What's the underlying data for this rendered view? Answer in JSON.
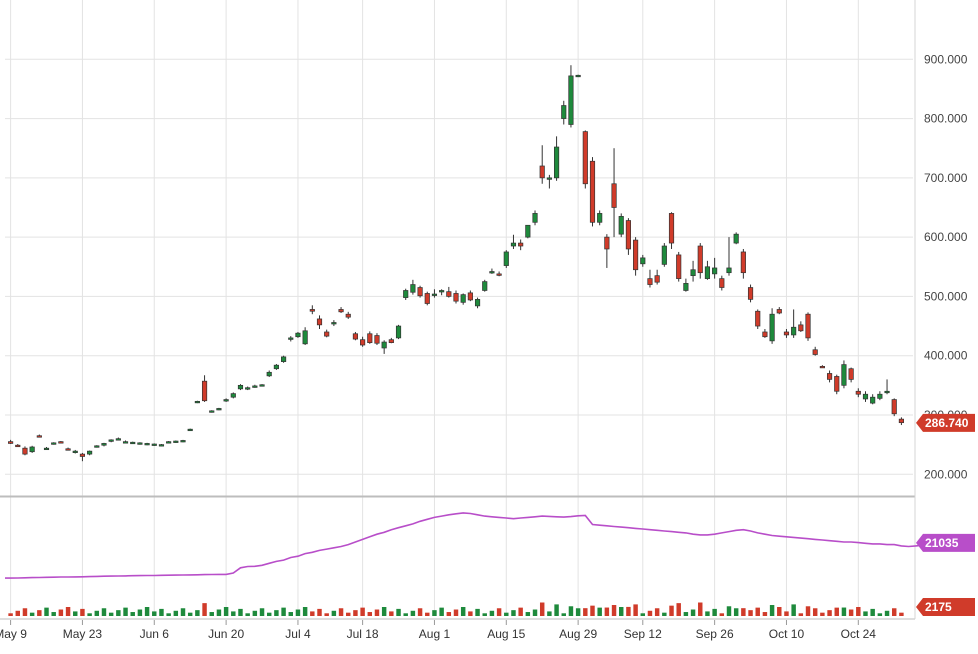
{
  "chart_data": [
    {
      "type": "candlestick",
      "title": "",
      "x_labels": [
        "May 9",
        "May 23",
        "Jun 6",
        "Jun 20",
        "Jul 4",
        "Jul 18",
        "Aug 1",
        "Aug 15",
        "Aug 29",
        "Sep 12",
        "Sep 26",
        "Oct 10",
        "Oct 24"
      ],
      "y_ticks": [
        "200.000",
        "300.000",
        "400.000",
        "500.000",
        "600.000",
        "700.000",
        "800.000",
        "900.000"
      ],
      "ylim": [
        165,
        1000
      ],
      "grid": true,
      "up_color": "#1e8a3c",
      "down_color": "#d03b2a",
      "last_price_label": "286.740",
      "last_price": 286.74,
      "candles": [
        {
          "date": "May 9",
          "o": 255,
          "h": 258,
          "l": 251,
          "c": 252
        },
        {
          "date": "May 10",
          "o": 249,
          "h": 251,
          "l": 246,
          "c": 248
        },
        {
          "date": "May 11",
          "o": 244,
          "h": 247,
          "l": 232,
          "c": 234
        },
        {
          "date": "May 12",
          "o": 238,
          "h": 248,
          "l": 236,
          "c": 246
        },
        {
          "date": "May 13",
          "o": 265,
          "h": 267,
          "l": 263,
          "c": 264
        },
        {
          "date": "May 16",
          "o": 243,
          "h": 246,
          "l": 241,
          "c": 244
        },
        {
          "date": "May 17",
          "o": 252,
          "h": 254,
          "l": 250,
          "c": 253
        },
        {
          "date": "May 18",
          "o": 255,
          "h": 256,
          "l": 253,
          "c": 254
        },
        {
          "date": "May 19",
          "o": 243,
          "h": 245,
          "l": 241,
          "c": 242
        },
        {
          "date": "May 20",
          "o": 238,
          "h": 241,
          "l": 235,
          "c": 239
        },
        {
          "date": "May 23",
          "o": 234,
          "h": 236,
          "l": 222,
          "c": 230
        },
        {
          "date": "May 24",
          "o": 234,
          "h": 240,
          "l": 232,
          "c": 239
        },
        {
          "date": "May 25",
          "o": 247,
          "h": 249,
          "l": 245,
          "c": 248
        },
        {
          "date": "May 26",
          "o": 249,
          "h": 253,
          "l": 247,
          "c": 252
        },
        {
          "date": "May 27",
          "o": 256,
          "h": 259,
          "l": 254,
          "c": 258
        },
        {
          "date": "May 30",
          "o": 259,
          "h": 262,
          "l": 257,
          "c": 260
        },
        {
          "date": "May 31",
          "o": 254,
          "h": 257,
          "l": 252,
          "c": 255
        },
        {
          "date": "Jun 1",
          "o": 253,
          "h": 255,
          "l": 251,
          "c": 254
        },
        {
          "date": "Jun 2",
          "o": 252,
          "h": 254,
          "l": 250,
          "c": 253
        },
        {
          "date": "Jun 3",
          "o": 251,
          "h": 253,
          "l": 249,
          "c": 252
        },
        {
          "date": "Jun 6",
          "o": 250,
          "h": 252,
          "l": 248,
          "c": 251
        },
        {
          "date": "Jun 7",
          "o": 249,
          "h": 251,
          "l": 247,
          "c": 250
        },
        {
          "date": "Jun 8",
          "o": 254,
          "h": 256,
          "l": 252,
          "c": 255
        },
        {
          "date": "Jun 9",
          "o": 255,
          "h": 257,
          "l": 253,
          "c": 256
        },
        {
          "date": "Jun 10",
          "o": 256,
          "h": 258,
          "l": 254,
          "c": 257
        },
        {
          "date": "Jun 13",
          "o": 275,
          "h": 277,
          "l": 273,
          "c": 276
        },
        {
          "date": "Jun 14",
          "o": 322,
          "h": 324,
          "l": 320,
          "c": 323
        },
        {
          "date": "Jun 15",
          "o": 357,
          "h": 367,
          "l": 322,
          "c": 324
        },
        {
          "date": "Jun 16",
          "o": 306,
          "h": 308,
          "l": 304,
          "c": 307
        },
        {
          "date": "Jun 17",
          "o": 310,
          "h": 312,
          "l": 308,
          "c": 311
        },
        {
          "date": "Jun 20",
          "o": 324,
          "h": 328,
          "l": 322,
          "c": 326
        },
        {
          "date": "Jun 21",
          "o": 330,
          "h": 338,
          "l": 328,
          "c": 336
        },
        {
          "date": "Jun 22",
          "o": 344,
          "h": 352,
          "l": 342,
          "c": 350
        },
        {
          "date": "Jun 23",
          "o": 345,
          "h": 348,
          "l": 342,
          "c": 346
        },
        {
          "date": "Jun 24",
          "o": 348,
          "h": 351,
          "l": 346,
          "c": 349
        },
        {
          "date": "Jun 27",
          "o": 350,
          "h": 352,
          "l": 348,
          "c": 351
        },
        {
          "date": "Jun 28",
          "o": 366,
          "h": 375,
          "l": 364,
          "c": 372
        },
        {
          "date": "Jun 29",
          "o": 378,
          "h": 386,
          "l": 376,
          "c": 384
        },
        {
          "date": "Jun 30",
          "o": 390,
          "h": 400,
          "l": 388,
          "c": 398
        },
        {
          "date": "Jul 1",
          "o": 428,
          "h": 433,
          "l": 424,
          "c": 430
        },
        {
          "date": "Jul 5",
          "o": 432,
          "h": 440,
          "l": 430,
          "c": 438
        },
        {
          "date": "Jul 6",
          "o": 420,
          "h": 448,
          "l": 418,
          "c": 442
        },
        {
          "date": "Jul 7",
          "o": 478,
          "h": 485,
          "l": 470,
          "c": 475
        },
        {
          "date": "Jul 8",
          "o": 462,
          "h": 468,
          "l": 445,
          "c": 452
        },
        {
          "date": "Jul 11",
          "o": 440,
          "h": 444,
          "l": 431,
          "c": 433
        },
        {
          "date": "Jul 12",
          "o": 455,
          "h": 460,
          "l": 450,
          "c": 456
        },
        {
          "date": "Jul 13",
          "o": 478,
          "h": 482,
          "l": 472,
          "c": 474
        },
        {
          "date": "Jul 14",
          "o": 470,
          "h": 474,
          "l": 462,
          "c": 465
        },
        {
          "date": "Jul 15",
          "o": 437,
          "h": 440,
          "l": 426,
          "c": 428
        },
        {
          "date": "Jul 18",
          "o": 427,
          "h": 432,
          "l": 415,
          "c": 418
        },
        {
          "date": "Jul 19",
          "o": 437,
          "h": 441,
          "l": 420,
          "c": 422
        },
        {
          "date": "Jul 20",
          "o": 434,
          "h": 438,
          "l": 418,
          "c": 421
        },
        {
          "date": "Jul 21",
          "o": 413,
          "h": 426,
          "l": 403,
          "c": 423
        },
        {
          "date": "Jul 22",
          "o": 427,
          "h": 430,
          "l": 421,
          "c": 422
        },
        {
          "date": "Jul 25",
          "o": 430,
          "h": 452,
          "l": 428,
          "c": 450
        },
        {
          "date": "Jul 26",
          "o": 498,
          "h": 513,
          "l": 494,
          "c": 510
        },
        {
          "date": "Jul 27",
          "o": 507,
          "h": 528,
          "l": 503,
          "c": 520
        },
        {
          "date": "Jul 28",
          "o": 515,
          "h": 518,
          "l": 498,
          "c": 501
        },
        {
          "date": "Jul 29",
          "o": 505,
          "h": 508,
          "l": 485,
          "c": 488
        },
        {
          "date": "Aug 1",
          "o": 502,
          "h": 512,
          "l": 498,
          "c": 504
        },
        {
          "date": "Aug 2",
          "o": 508,
          "h": 512,
          "l": 502,
          "c": 510
        },
        {
          "date": "Aug 3",
          "o": 508,
          "h": 516,
          "l": 498,
          "c": 500
        },
        {
          "date": "Aug 4",
          "o": 505,
          "h": 510,
          "l": 488,
          "c": 492
        },
        {
          "date": "Aug 5",
          "o": 490,
          "h": 505,
          "l": 486,
          "c": 503
        },
        {
          "date": "Aug 8",
          "o": 506,
          "h": 510,
          "l": 492,
          "c": 494
        },
        {
          "date": "Aug 9",
          "o": 484,
          "h": 498,
          "l": 480,
          "c": 495
        },
        {
          "date": "Aug 10",
          "o": 510,
          "h": 528,
          "l": 508,
          "c": 525
        },
        {
          "date": "Aug 11",
          "o": 540,
          "h": 547,
          "l": 538,
          "c": 542
        },
        {
          "date": "Aug 12",
          "o": 538,
          "h": 542,
          "l": 534,
          "c": 536
        },
        {
          "date": "Aug 15",
          "o": 552,
          "h": 578,
          "l": 548,
          "c": 575
        },
        {
          "date": "Aug 16",
          "o": 585,
          "h": 604,
          "l": 580,
          "c": 590
        },
        {
          "date": "Aug 17",
          "o": 590,
          "h": 596,
          "l": 578,
          "c": 585
        },
        {
          "date": "Aug 18",
          "o": 600,
          "h": 620,
          "l": 598,
          "c": 620
        },
        {
          "date": "Aug 19",
          "o": 625,
          "h": 645,
          "l": 620,
          "c": 640
        },
        {
          "date": "Aug 22",
          "o": 720,
          "h": 755,
          "l": 690,
          "c": 700
        },
        {
          "date": "Aug 23",
          "o": 700,
          "h": 705,
          "l": 682,
          "c": 700
        },
        {
          "date": "Aug 24",
          "o": 700,
          "h": 770,
          "l": 695,
          "c": 752
        },
        {
          "date": "Aug 25",
          "o": 800,
          "h": 830,
          "l": 790,
          "c": 822
        },
        {
          "date": "Aug 26",
          "o": 790,
          "h": 890,
          "l": 785,
          "c": 872
        },
        {
          "date": "Aug 29",
          "o": 872,
          "h": 874,
          "l": 870,
          "c": 873
        },
        {
          "date": "Aug 30",
          "o": 778,
          "h": 780,
          "l": 682,
          "c": 690
        },
        {
          "date": "Aug 31",
          "o": 728,
          "h": 735,
          "l": 618,
          "c": 625
        },
        {
          "date": "Sep 1",
          "o": 625,
          "h": 645,
          "l": 620,
          "c": 640
        },
        {
          "date": "Sep 2",
          "o": 600,
          "h": 605,
          "l": 548,
          "c": 580
        },
        {
          "date": "Sep 6",
          "o": 690,
          "h": 750,
          "l": 600,
          "c": 650
        },
        {
          "date": "Sep 7",
          "o": 605,
          "h": 640,
          "l": 600,
          "c": 635
        },
        {
          "date": "Sep 8",
          "o": 628,
          "h": 632,
          "l": 570,
          "c": 580
        },
        {
          "date": "Sep 9",
          "o": 595,
          "h": 600,
          "l": 535,
          "c": 545
        },
        {
          "date": "Sep 12",
          "o": 555,
          "h": 570,
          "l": 550,
          "c": 565
        },
        {
          "date": "Sep 13",
          "o": 530,
          "h": 545,
          "l": 515,
          "c": 520
        },
        {
          "date": "Sep 14",
          "o": 535,
          "h": 545,
          "l": 520,
          "c": 524
        },
        {
          "date": "Sep 15",
          "o": 554,
          "h": 590,
          "l": 550,
          "c": 585
        },
        {
          "date": "Sep 16",
          "o": 640,
          "h": 642,
          "l": 580,
          "c": 590
        },
        {
          "date": "Sep 19",
          "o": 570,
          "h": 575,
          "l": 525,
          "c": 530
        },
        {
          "date": "Sep 20",
          "o": 510,
          "h": 530,
          "l": 508,
          "c": 522
        },
        {
          "date": "Sep 21",
          "o": 535,
          "h": 560,
          "l": 525,
          "c": 545
        },
        {
          "date": "Sep 22",
          "o": 585,
          "h": 590,
          "l": 530,
          "c": 540
        },
        {
          "date": "Sep 23",
          "o": 530,
          "h": 560,
          "l": 528,
          "c": 550
        },
        {
          "date": "Sep 26",
          "o": 538,
          "h": 565,
          "l": 530,
          "c": 548
        },
        {
          "date": "Sep 27",
          "o": 530,
          "h": 535,
          "l": 510,
          "c": 515
        },
        {
          "date": "Sep 28",
          "o": 540,
          "h": 600,
          "l": 535,
          "c": 548
        },
        {
          "date": "Sep 29",
          "o": 590,
          "h": 608,
          "l": 588,
          "c": 605
        },
        {
          "date": "Sep 30",
          "o": 575,
          "h": 580,
          "l": 530,
          "c": 540
        },
        {
          "date": "Oct 3",
          "o": 515,
          "h": 520,
          "l": 490,
          "c": 495
        },
        {
          "date": "Oct 4",
          "o": 475,
          "h": 478,
          "l": 445,
          "c": 450
        },
        {
          "date": "Oct 5",
          "o": 440,
          "h": 445,
          "l": 430,
          "c": 432
        },
        {
          "date": "Oct 6",
          "o": 425,
          "h": 480,
          "l": 420,
          "c": 470
        },
        {
          "date": "Oct 7",
          "o": 478,
          "h": 482,
          "l": 470,
          "c": 472
        },
        {
          "date": "Oct 10",
          "o": 440,
          "h": 445,
          "l": 430,
          "c": 435
        },
        {
          "date": "Oct 11",
          "o": 435,
          "h": 478,
          "l": 430,
          "c": 448
        },
        {
          "date": "Oct 12",
          "o": 452,
          "h": 458,
          "l": 440,
          "c": 442
        },
        {
          "date": "Oct 13",
          "o": 470,
          "h": 473,
          "l": 425,
          "c": 430
        },
        {
          "date": "Oct 14",
          "o": 410,
          "h": 415,
          "l": 400,
          "c": 402
        },
        {
          "date": "Oct 17",
          "o": 382,
          "h": 384,
          "l": 380,
          "c": 381
        },
        {
          "date": "Oct 18",
          "o": 370,
          "h": 375,
          "l": 355,
          "c": 360
        },
        {
          "date": "Oct 19",
          "o": 365,
          "h": 368,
          "l": 335,
          "c": 340
        },
        {
          "date": "Oct 20",
          "o": 350,
          "h": 392,
          "l": 345,
          "c": 385
        },
        {
          "date": "Oct 21",
          "o": 378,
          "h": 380,
          "l": 355,
          "c": 360
        },
        {
          "date": "Oct 24",
          "o": 340,
          "h": 345,
          "l": 330,
          "c": 335
        },
        {
          "date": "Oct 25",
          "o": 327,
          "h": 340,
          "l": 322,
          "c": 335
        },
        {
          "date": "Oct 26",
          "o": 320,
          "h": 335,
          "l": 318,
          "c": 330
        },
        {
          "date": "Oct 27",
          "o": 328,
          "h": 340,
          "l": 325,
          "c": 335
        },
        {
          "date": "Oct 28",
          "o": 338,
          "h": 360,
          "l": 335,
          "c": 340
        },
        {
          "date": "Oct 31",
          "o": 326,
          "h": 328,
          "l": 298,
          "c": 302
        },
        {
          "date": "Nov 1",
          "o": 293,
          "h": 296,
          "l": 283,
          "c": 287
        }
      ]
    },
    {
      "type": "line",
      "label": "21035",
      "color": "#b84ec9",
      "ylim": [
        17000,
        24500
      ],
      "last_value": 21035,
      "values": [
        18310,
        18315,
        18330,
        18345,
        18355,
        18370,
        18380,
        18390,
        18395,
        18400,
        18410,
        18420,
        18435,
        18450,
        18460,
        18470,
        18480,
        18490,
        18500,
        18505,
        18510,
        18520,
        18530,
        18540,
        18545,
        18555,
        18565,
        18575,
        18585,
        18590,
        18590,
        18700,
        19100,
        19200,
        19220,
        19300,
        19450,
        19600,
        19700,
        19900,
        20000,
        20200,
        20300,
        20450,
        20550,
        20650,
        20750,
        20900,
        21100,
        21300,
        21500,
        21700,
        21850,
        22050,
        22200,
        22350,
        22500,
        22700,
        22850,
        23000,
        23100,
        23200,
        23280,
        23350,
        23300,
        23200,
        23100,
        23050,
        23000,
        22950,
        22900,
        22950,
        23000,
        23050,
        23100,
        23080,
        23050,
        23020,
        23060,
        23120,
        23150,
        22450,
        22400,
        22350,
        22300,
        22250,
        22200,
        22150,
        22100,
        22050,
        22000,
        21950,
        21900,
        21850,
        21800,
        21700,
        21650,
        21650,
        21700,
        21800,
        21900,
        22000,
        22050,
        21950,
        21800,
        21700,
        21600,
        21550,
        21500,
        21450,
        21400,
        21350,
        21300,
        21250,
        21200,
        21150,
        21100,
        21100,
        21050,
        21000,
        20950,
        20950,
        20900,
        20900,
        20800,
        20750,
        20800,
        20850,
        20900,
        21035
      ]
    },
    {
      "type": "bar",
      "label": "2175",
      "up_color": "#1e8a3c",
      "down_color": "#d03b2a",
      "ylim": [
        0,
        10000
      ],
      "last_value": 2175
    }
  ],
  "tags": {
    "price": {
      "text": "286.740",
      "color": "#d03b2a"
    },
    "line": {
      "text": "21035",
      "color": "#b84ec9"
    },
    "volume": {
      "text": "2175",
      "color": "#d03b2a"
    }
  }
}
